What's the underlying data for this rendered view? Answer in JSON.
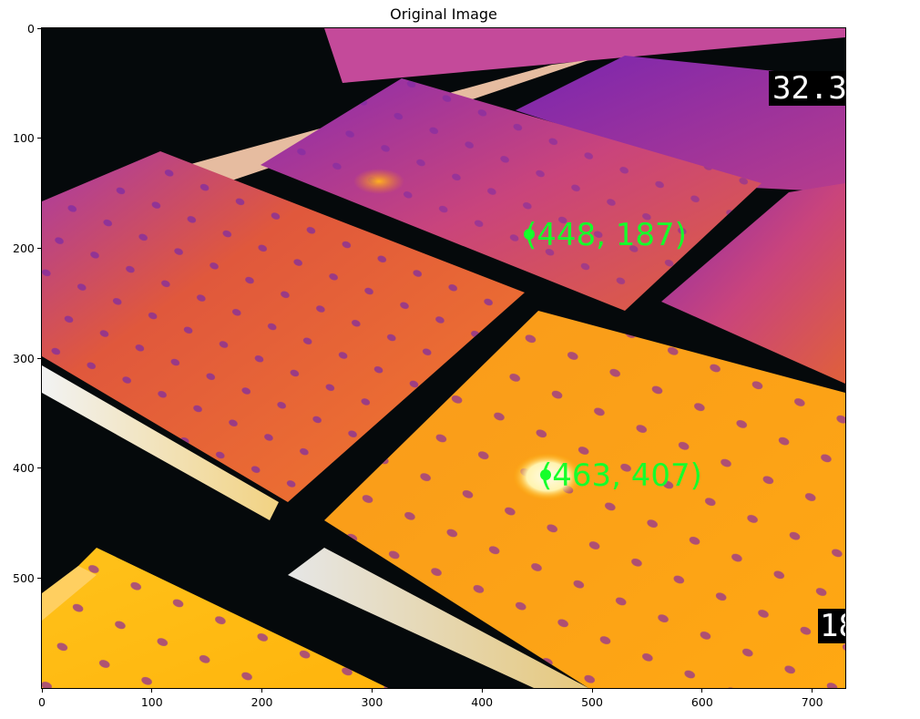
{
  "figure": {
    "title": "Original Image",
    "x_ticks": [
      "0",
      "100",
      "200",
      "300",
      "400",
      "500",
      "600",
      "700"
    ],
    "y_ticks": [
      "0",
      "100",
      "200",
      "300",
      "400",
      "500"
    ],
    "x_range": [
      0,
      730
    ],
    "y_range": [
      0,
      600
    ]
  },
  "image": {
    "description_icon": "thermal-image",
    "overlay_temp_top": "32.3",
    "overlay_temp_bottom": "18",
    "annotations": [
      {
        "label": "(448, 187)",
        "x": 448,
        "y": 187
      },
      {
        "label": "(463, 407)",
        "x": 463,
        "y": 407
      }
    ],
    "colors": {
      "annotation": "#15ff2b",
      "hot": "#ffb000",
      "warm": "#e8541f",
      "cool": "#6a1fb0",
      "background": "#05090b"
    }
  }
}
